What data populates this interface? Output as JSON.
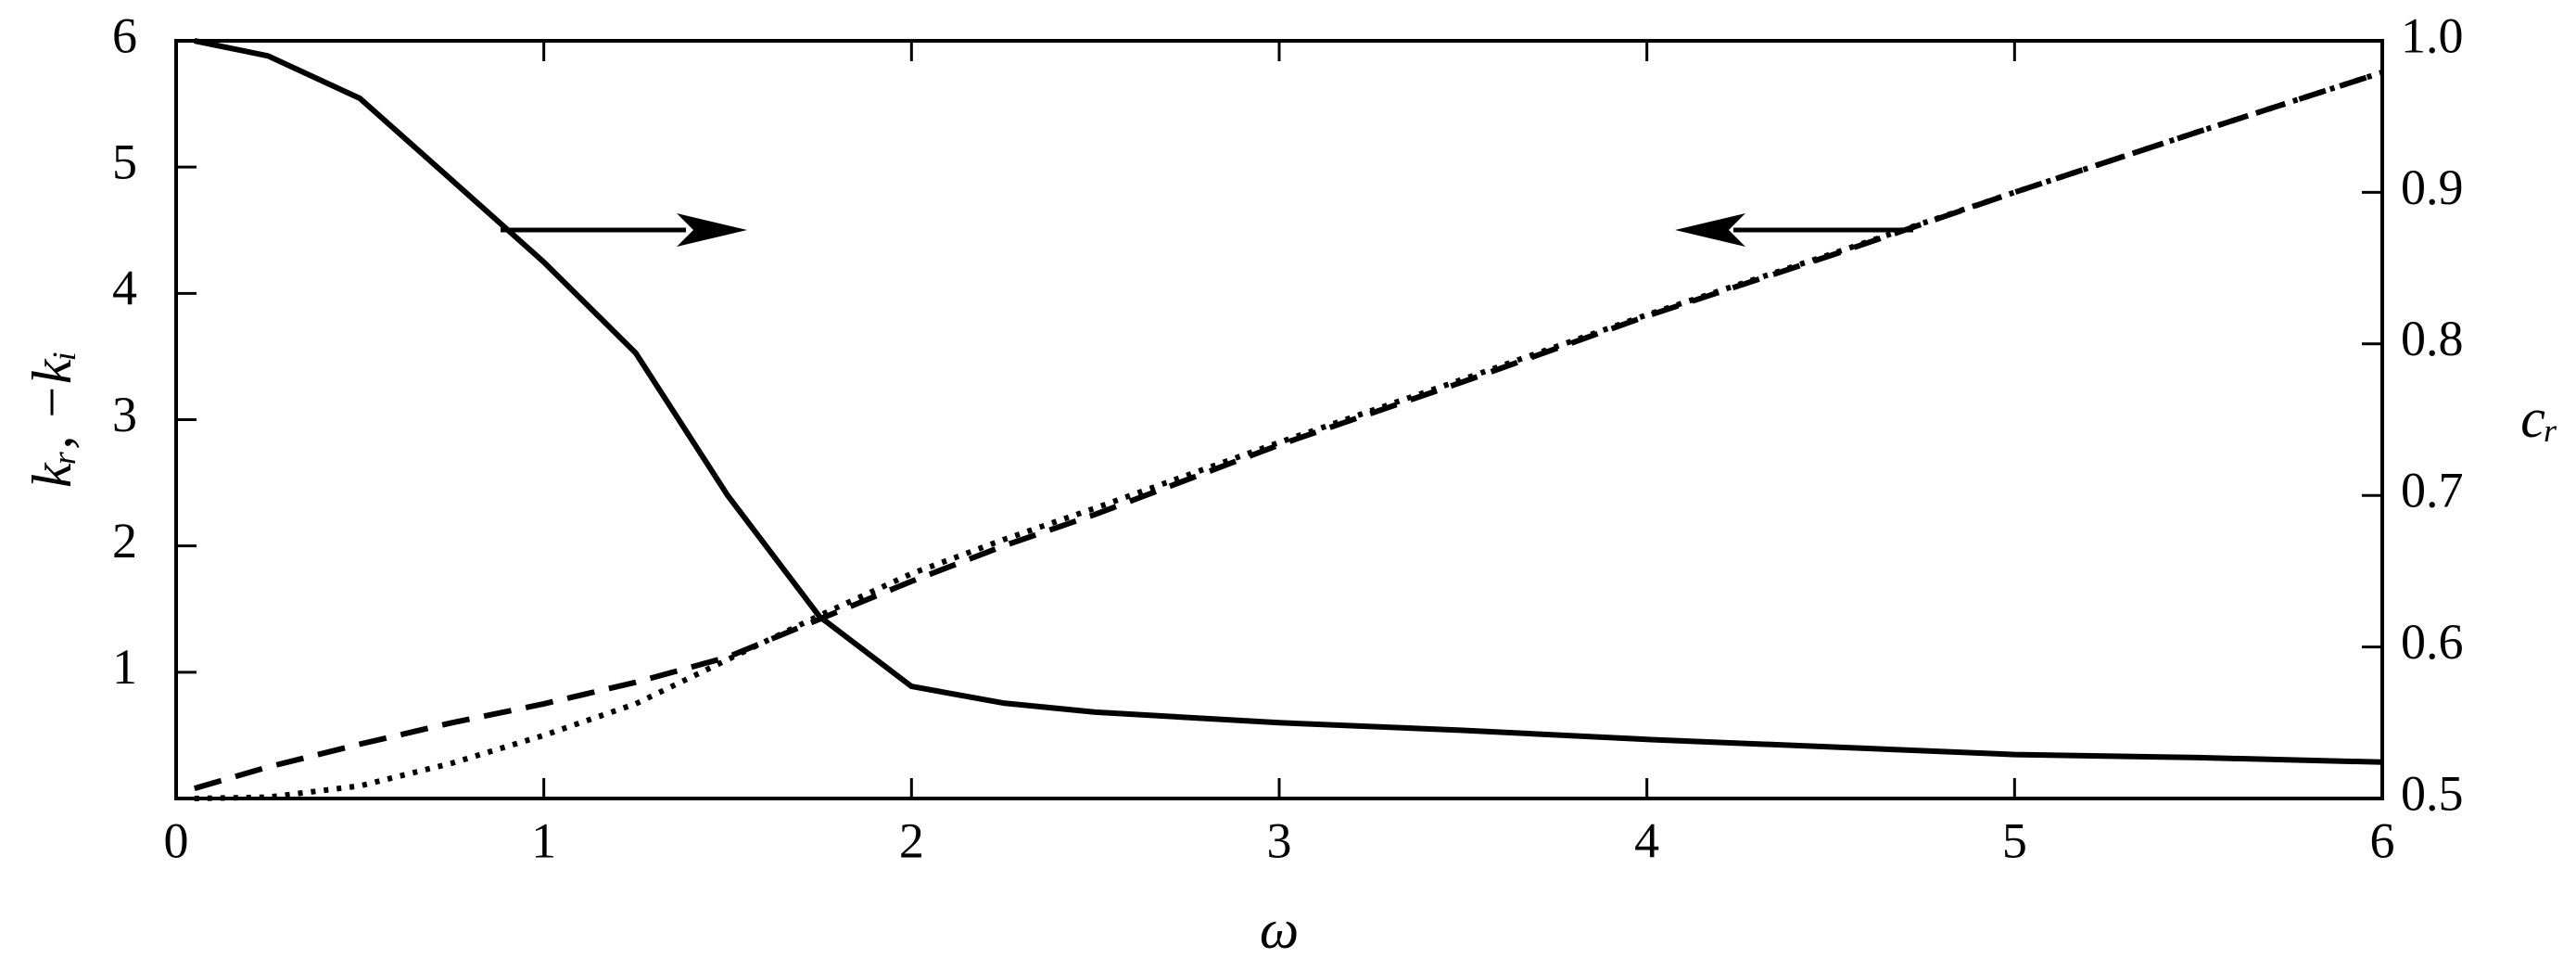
{
  "chart_data": {
    "type": "line",
    "xlabel": "ω",
    "ylabel": "kᵣ, −kᵢ",
    "y2label": "cᵣ",
    "x": [
      0.05,
      0.25,
      0.5,
      0.75,
      1,
      1.25,
      1.5,
      1.75,
      2,
      2.25,
      2.5,
      3,
      3.5,
      4,
      4.5,
      5,
      5.5,
      6
    ],
    "series": [
      {
        "color": "#000000",
        "dash": "solid",
        "axis": "y2",
        "values": [
          1.0,
          0.99,
          0.962,
          0.908,
          0.854,
          0.794,
          0.7,
          0.62,
          0.574,
          0.563,
          0.557,
          0.55,
          0.545,
          0.539,
          0.534,
          0.529,
          0.527,
          0.524
        ]
      },
      {
        "color": "#000000",
        "dash": "dashed",
        "values": [
          0.08,
          0.25,
          0.43,
          0.6,
          0.75,
          0.92,
          1.12,
          1.42,
          1.72,
          2.0,
          2.25,
          2.8,
          3.3,
          3.82,
          4.3,
          4.8,
          5.28,
          5.75
        ]
      },
      {
        "color": "#000000",
        "dash": "dotted",
        "values": [
          0.0,
          0.01,
          0.1,
          0.28,
          0.5,
          0.75,
          1.1,
          1.45,
          1.78,
          2.05,
          2.3,
          2.82,
          3.32,
          3.83,
          4.31,
          4.8,
          5.28,
          5.75
        ]
      }
    ],
    "xlim": [
      0,
      6
    ],
    "xticks": [
      0,
      1,
      2,
      3,
      4,
      5,
      6
    ],
    "ylim": [
      0,
      6
    ],
    "yticks": [
      1,
      2,
      3,
      4,
      5,
      6
    ],
    "y2lim": [
      0.5,
      1.0
    ],
    "y2ticks": [
      0.5,
      0.6,
      0.7,
      0.8,
      0.9,
      {
        "value": 1.0,
        "label": "1.0"
      }
    ],
    "grid": false
  }
}
